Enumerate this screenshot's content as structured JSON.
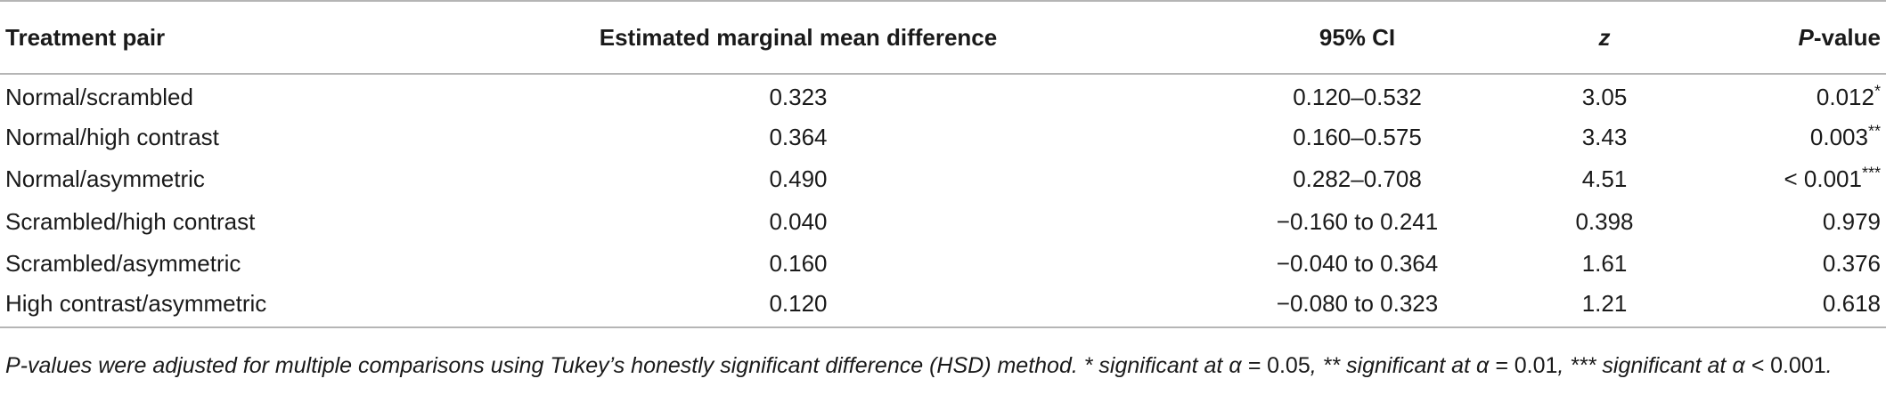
{
  "table": {
    "headers": {
      "treatment_pair": "Treatment pair",
      "emm_difference": "Estimated marginal mean difference",
      "ci": "95% CI",
      "z": "z",
      "p_italic": "P",
      "p_rest": "-value"
    },
    "rows": [
      {
        "pair": "Normal/scrambled",
        "diff": "0.323",
        "ci": "0.120–0.532",
        "z": "3.05",
        "p": "0.012",
        "sig": "*"
      },
      {
        "pair": "Normal/high contrast",
        "diff": "0.364",
        "ci": "0.160–0.575",
        "z": "3.43",
        "p": "0.003",
        "sig": "**"
      },
      {
        "pair": "Normal/asymmetric",
        "diff": "0.490",
        "ci": "0.282–0.708",
        "z": "4.51",
        "p": "< 0.001",
        "sig": "***"
      },
      {
        "pair": "Scrambled/high contrast",
        "diff": "0.040",
        "ci": "−0.160 to 0.241",
        "z": "0.398",
        "p": "0.979",
        "sig": ""
      },
      {
        "pair": "Scrambled/asymmetric",
        "diff": "0.160",
        "ci": "−0.040 to 0.364",
        "z": "1.61",
        "p": "0.376",
        "sig": ""
      },
      {
        "pair": "High contrast/asymmetric",
        "diff": "0.120",
        "ci": "−0.080 to 0.323",
        "z": "1.21",
        "p": "0.618",
        "sig": ""
      }
    ]
  },
  "footnote": {
    "part1": "P-values were adjusted for multiple comparisons using Tukey’s honestly significant difference (HSD) method. * significant at α = ",
    "v1": "0.05",
    "part2": ", ** significant at α = ",
    "v2": "0.01",
    "part3": ", *** significant at α < ",
    "v3": "0.001",
    "part4": "."
  }
}
